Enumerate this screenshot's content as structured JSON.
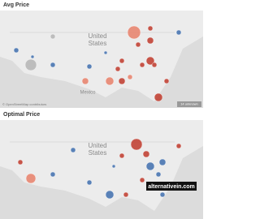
{
  "panels": [
    {
      "title": "Avg Price",
      "labels": {
        "country": [
          "United",
          "States"
        ],
        "mexico": "Mexico"
      },
      "attribution": "© OpenStreetMap contributors",
      "badge": "14 unknown"
    },
    {
      "title": "Optimal Price",
      "labels": {
        "country": [
          "United",
          "States"
        ]
      }
    }
  ],
  "watermark": "alternativein.com"
}
